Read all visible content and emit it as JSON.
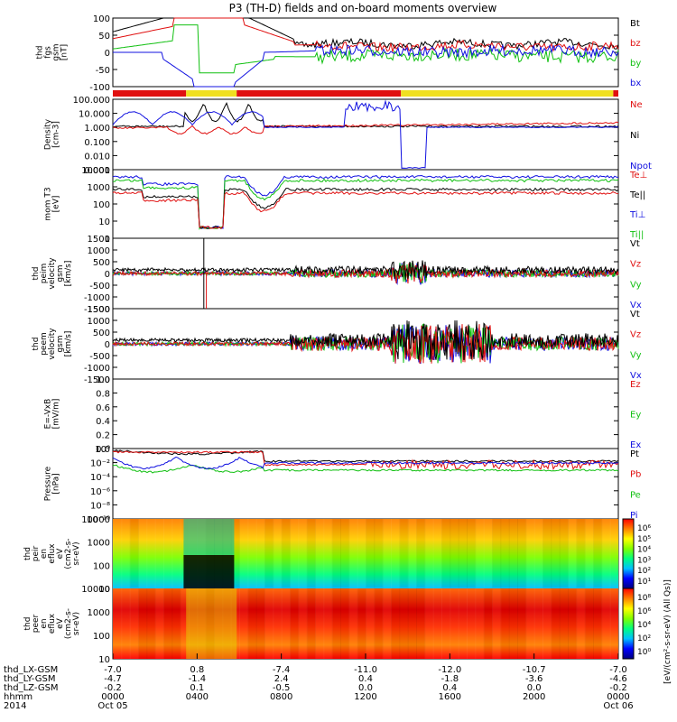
{
  "title": "P3 (TH-D) fields and on-board moments overview",
  "chart_data": {
    "type": "line",
    "panels": [
      {
        "id": "fgs",
        "ylabel": [
          "thd",
          "fgs",
          "gsm",
          "[nT]"
        ],
        "ticks": [
          "100",
          "50",
          "0",
          "-50",
          "-100"
        ],
        "legend": [
          {
            "label": "Bt",
            "color": "#000000"
          },
          {
            "label": "bz",
            "color": "#e01010"
          },
          {
            "label": "by",
            "color": "#10c010"
          },
          {
            "label": "bx",
            "color": "#1010e0"
          }
        ]
      },
      {
        "id": "density",
        "ylabel": [
          "Density",
          "[cm-3]"
        ],
        "ticks": [
          "100.000",
          "10.000",
          "1.000",
          "0.100",
          "0.010",
          "0.001"
        ],
        "legend": [
          {
            "label": "Ne",
            "color": "#e01010"
          },
          {
            "label": "Ni",
            "color": "#000000"
          },
          {
            "label": "Npot",
            "color": "#1010e0"
          }
        ]
      },
      {
        "id": "temp",
        "ylabel": [
          "mom T3",
          "[eV]"
        ],
        "ticks": [
          "10000",
          "1000",
          "100",
          "10",
          "1"
        ],
        "legend": [
          {
            "label": "Te⊥",
            "color": "#e01010"
          },
          {
            "label": "Te||",
            "color": "#000000"
          },
          {
            "label": "Ti⊥",
            "color": "#1010e0"
          },
          {
            "label": "Ti||",
            "color": "#10c010"
          }
        ]
      },
      {
        "id": "peim",
        "ylabel": [
          "thd",
          "peim",
          "velocity",
          "gsm",
          "[km/s]"
        ],
        "ticks": [
          "1500",
          "1000",
          "500",
          "0",
          "-500",
          "-1000",
          "-1500"
        ],
        "legend": [
          {
            "label": "Vt",
            "color": "#000000"
          },
          {
            "label": "Vz",
            "color": "#e01010"
          },
          {
            "label": "Vy",
            "color": "#10c010"
          },
          {
            "label": "Vx",
            "color": "#1010e0"
          }
        ]
      },
      {
        "id": "peem",
        "ylabel": [
          "thd",
          "peem",
          "velocity",
          "gsm",
          "[km/s]"
        ],
        "ticks": [
          "1500",
          "1000",
          "500",
          "0",
          "-500",
          "-1000",
          "-1500"
        ],
        "legend": [
          {
            "label": "Vt",
            "color": "#000000"
          },
          {
            "label": "Vz",
            "color": "#e01010"
          },
          {
            "label": "Vy",
            "color": "#10c010"
          },
          {
            "label": "Vx",
            "color": "#1010e0"
          }
        ]
      },
      {
        "id": "efield",
        "ylabel": [
          "E=-VxB",
          "[mV/m]"
        ],
        "ticks": [
          "1.0",
          "0.8",
          "0.6",
          "0.4",
          "0.2",
          "0.0"
        ],
        "legend": [
          {
            "label": "Ez",
            "color": "#e01010"
          },
          {
            "label": "Ey",
            "color": "#10c010"
          },
          {
            "label": "Ex",
            "color": "#1010e0"
          }
        ]
      },
      {
        "id": "pressure",
        "ylabel": [
          "Pressure",
          "[nPa]"
        ],
        "ticks": [
          "10⁰",
          "10⁻²",
          "10⁻⁴",
          "10⁻⁶",
          "10⁻⁸",
          "10⁻¹⁰"
        ],
        "legend": [
          {
            "label": "Pt",
            "color": "#000000"
          },
          {
            "label": "Pb",
            "color": "#e01010"
          },
          {
            "label": "Pe",
            "color": "#10c010"
          },
          {
            "label": "Pi",
            "color": "#1010e0"
          }
        ]
      },
      {
        "id": "peir",
        "ylabel": [
          "thd",
          "peir",
          "en",
          "eflux",
          "eV",
          "(cm2-s-",
          "sr-eV)"
        ],
        "ticks": [
          "10000",
          "1000",
          "100",
          "10"
        ],
        "colorbar": [
          "10⁶",
          "10⁵",
          "10⁴",
          "10³",
          "10²",
          "10¹"
        ],
        "colorbar_label": "eV/(cm²-s-sr-eV) (All Qs)"
      },
      {
        "id": "peer",
        "ylabel": [
          "thd",
          "peer",
          "en",
          "eflux",
          "eV",
          "(cm2-s-",
          "sr-eV)"
        ],
        "ticks": [
          "10000",
          "1000",
          "100",
          "10"
        ],
        "colorbar": [
          "10⁸",
          "10⁶",
          "10⁴",
          "10²",
          "10⁰"
        ],
        "colorbar_label": "[eV/(cm²-s-sr-eV) (All Qs)]"
      }
    ],
    "x_axis": {
      "rows": [
        {
          "label": "thd_LX-GSM",
          "values": [
            "-7.0",
            "0.8",
            "-7.4",
            "-11.0",
            "-12.0",
            "-10.7",
            "-7.0"
          ]
        },
        {
          "label": "thd_LY-GSM",
          "values": [
            "-4.7",
            "-1.4",
            "2.4",
            "0.4",
            "-1.8",
            "-3.6",
            "-4.6"
          ]
        },
        {
          "label": "thd_LZ-GSM",
          "values": [
            "-0.2",
            "0.1",
            "-0.5",
            "0.0",
            "0.4",
            "0.0",
            "-0.2"
          ]
        },
        {
          "label": "hhmm",
          "values": [
            "0000",
            "0400",
            "0800",
            "1200",
            "1600",
            "2000",
            "0000"
          ]
        },
        {
          "label": "2014",
          "values": [
            "Oct 05",
            "",
            "",
            "",
            "",
            "",
            "Oct 06"
          ]
        }
      ]
    },
    "mode_bar": [
      {
        "from": 0,
        "to": 0.145,
        "color": "#e01010"
      },
      {
        "from": 0.145,
        "to": 0.245,
        "color": "#f0e020"
      },
      {
        "from": 0.245,
        "to": 0.57,
        "color": "#e01010"
      },
      {
        "from": 0.57,
        "to": 0.99,
        "color": "#f0e020"
      },
      {
        "from": 0.99,
        "to": 1,
        "color": "#e01010"
      }
    ]
  }
}
